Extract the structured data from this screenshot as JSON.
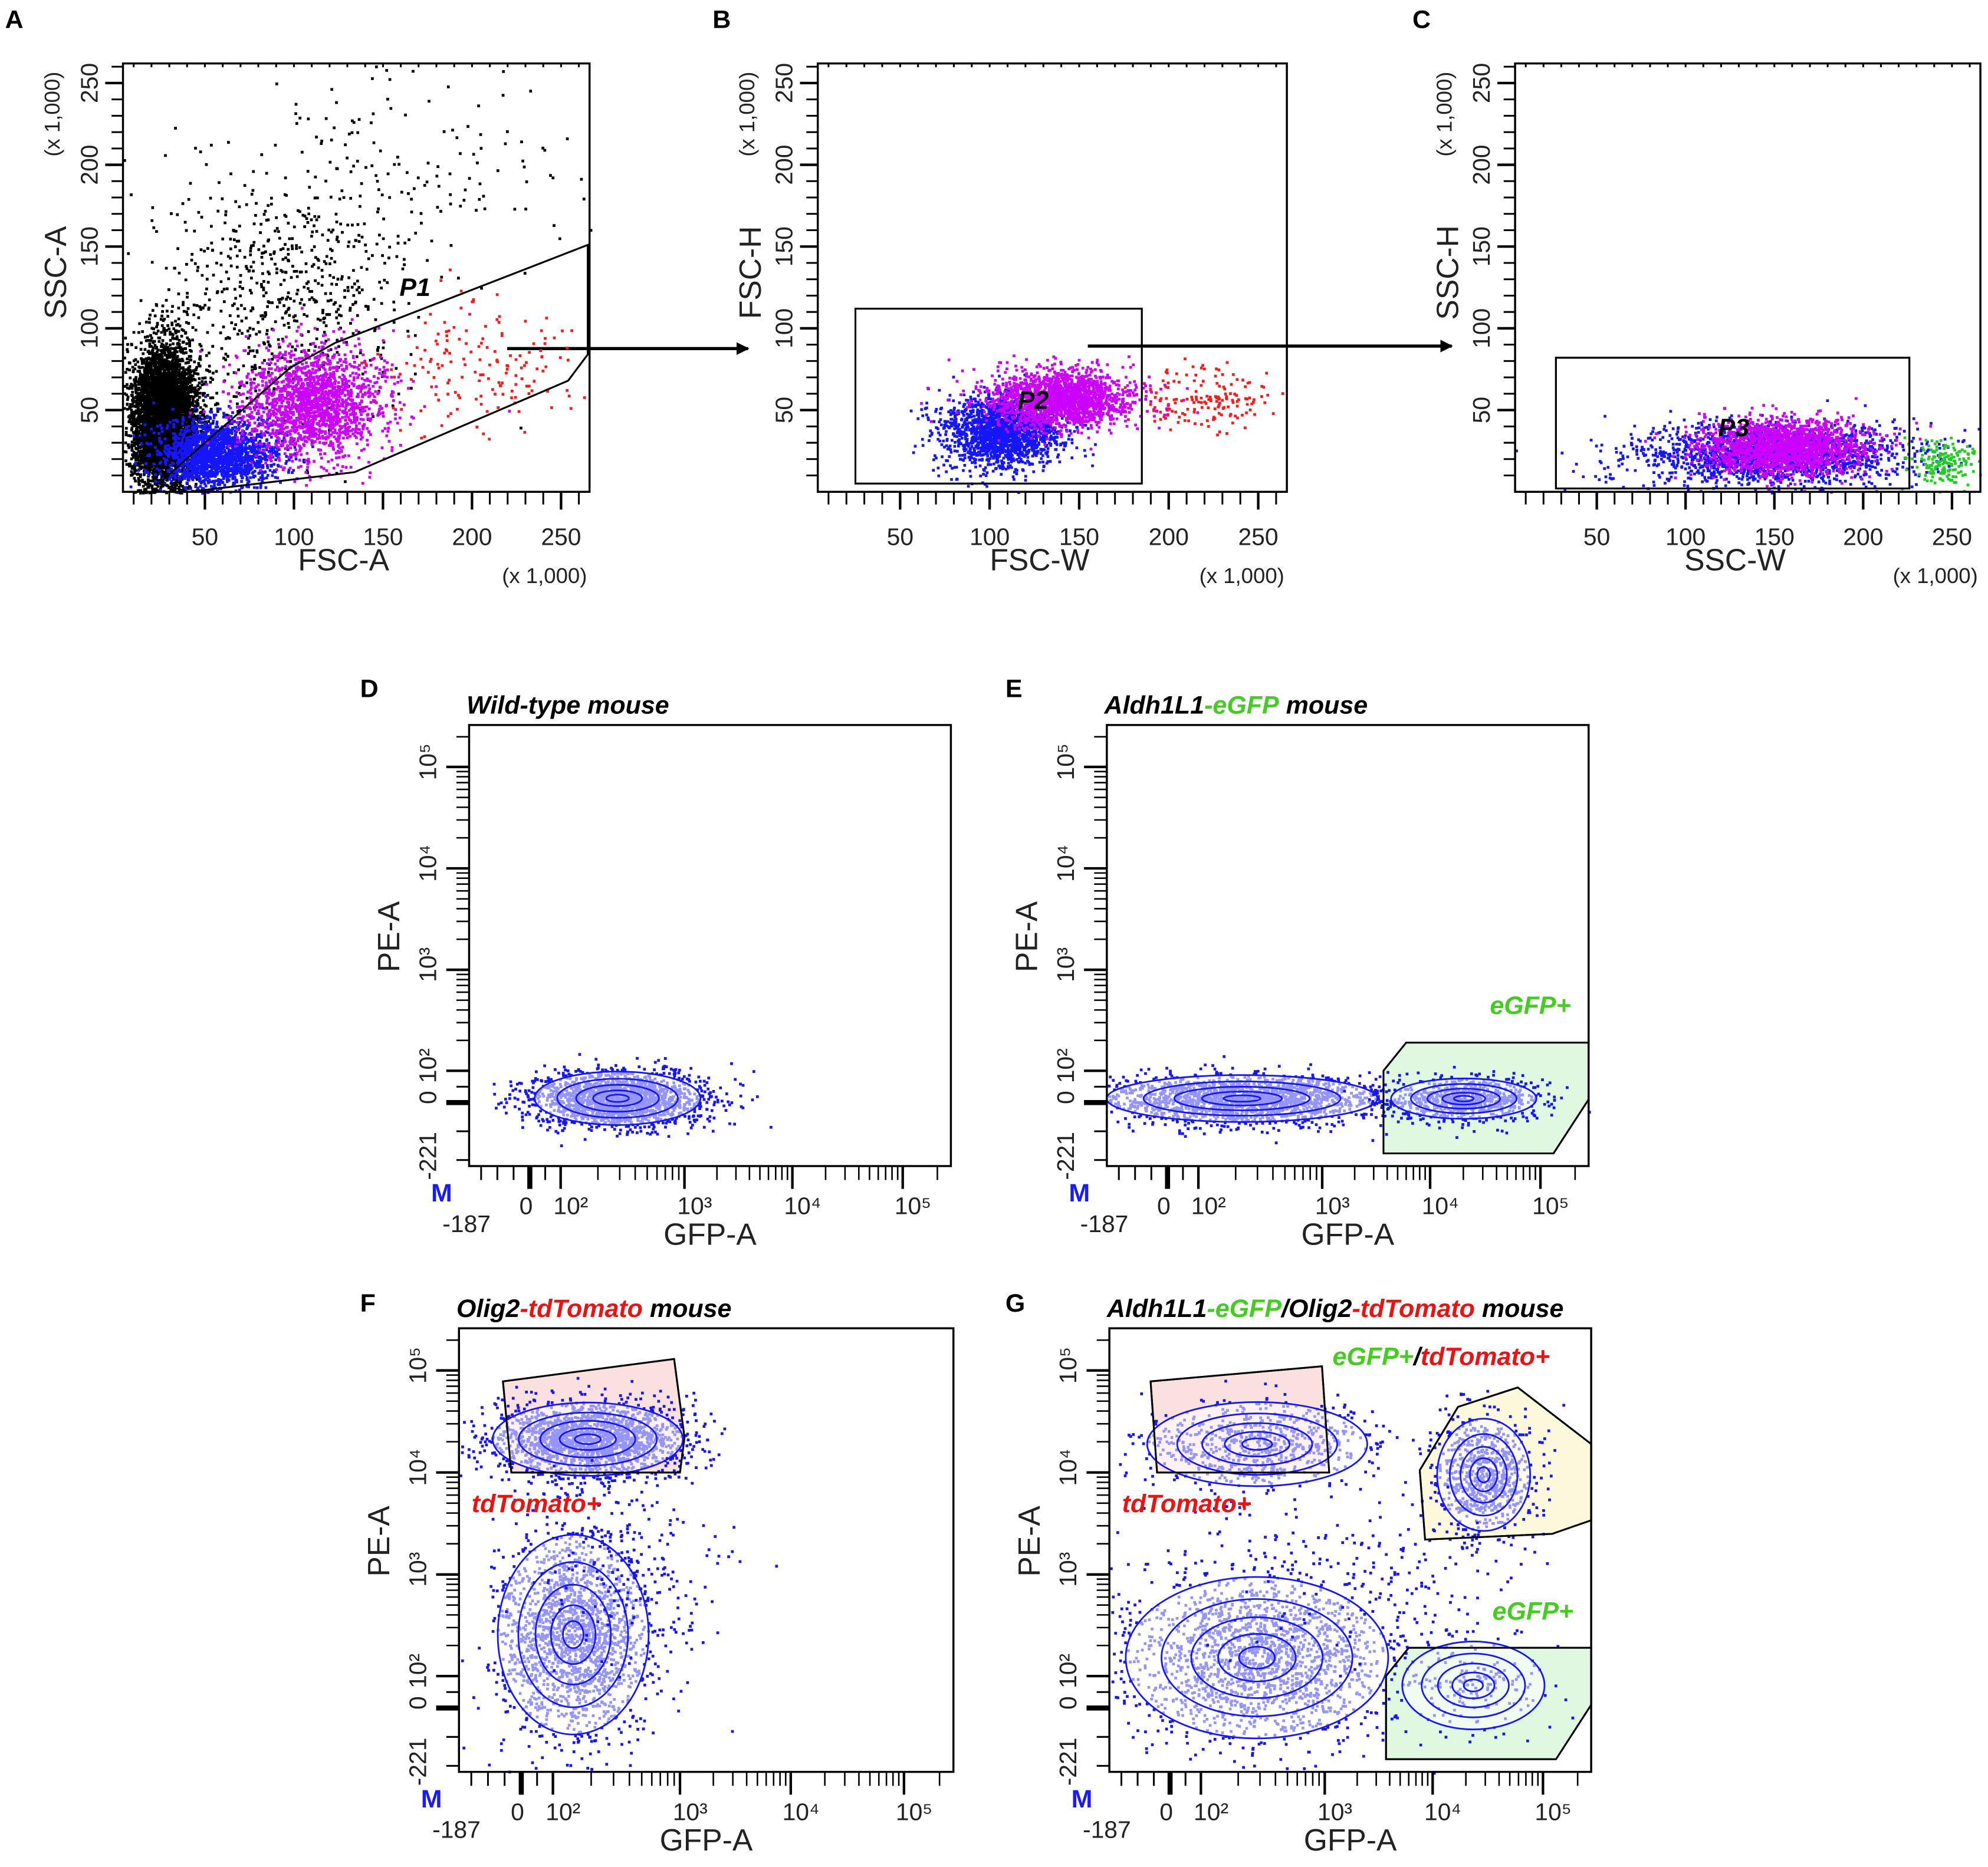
{
  "colors": {
    "black": "#000000",
    "blue": "#1515ff",
    "magenta": "#cc00ff",
    "red": "#ff1a1a",
    "green": "#22cc22",
    "text_green": "#44cc22",
    "text_red": "#ee1111",
    "gfp_gate_fill": "#e0f8e0",
    "tdtomato_gate_fill": "#fbe0e0",
    "double_gate_fill": "#fbf8dc",
    "m_marker": "#1a1aff"
  },
  "chart_data": [
    {
      "panel": "A",
      "type": "scatter",
      "xlabel": "FSC-A",
      "ylabel": "SSC-A",
      "x_multiplier": "(x 1,000)",
      "y_multiplier": "(x 1,000)",
      "xlim": [
        4,
        266
      ],
      "ylim": [
        0,
        262
      ],
      "xticks": [
        "50",
        "100",
        "150",
        "200",
        "250"
      ],
      "yticks": [
        "50",
        "100",
        "150",
        "200",
        "250"
      ],
      "gates": [
        {
          "name": "P1",
          "shape": "polygon",
          "vertices": [
            [
              24,
              5
            ],
            [
              98,
              76
            ],
            [
              123,
              91
            ],
            [
              265,
              151
            ],
            [
              265,
              84
            ],
            [
              254,
              68
            ],
            [
              134,
              12
            ],
            [
              41,
              0
            ]
          ]
        }
      ],
      "populations": [
        {
          "color": "black",
          "x_range": [
            8,
            45
          ],
          "y_range": [
            0,
            90
          ],
          "density": "very high"
        },
        {
          "color": "black",
          "x_range": [
            20,
            160
          ],
          "y_range": [
            30,
            200
          ],
          "density": "medium"
        },
        {
          "color": "black",
          "x_range": [
            60,
            262
          ],
          "y_range": [
            120,
            262
          ],
          "density": "low"
        },
        {
          "color": "blue",
          "x_range": [
            25,
            90
          ],
          "y_range": [
            3,
            45
          ],
          "density": "high"
        },
        {
          "color": "magenta",
          "x_range": [
            70,
            150
          ],
          "y_range": [
            20,
            90
          ],
          "density": "high"
        },
        {
          "color": "red",
          "x_range": [
            150,
            262
          ],
          "y_range": [
            40,
            120
          ],
          "density": "low"
        }
      ]
    },
    {
      "panel": "B",
      "type": "scatter",
      "xlabel": "FSC-W",
      "ylabel": "FSC-H",
      "x_multiplier": "(x 1,000)",
      "y_multiplier": "(x 1,000)",
      "xlim": [
        4,
        266
      ],
      "ylim": [
        0,
        262
      ],
      "xticks": [
        "50",
        "100",
        "150",
        "200",
        "250"
      ],
      "yticks": [
        "50",
        "100",
        "150",
        "200",
        "250"
      ],
      "gates": [
        {
          "name": "P2",
          "shape": "rectangle",
          "vertices": [
            [
              25,
              112
            ],
            [
              185,
              112
            ],
            [
              185,
              5
            ],
            [
              25,
              5
            ]
          ]
        }
      ],
      "populations": [
        {
          "color": "blue",
          "x_range": [
            72,
            140
          ],
          "y_range": [
            15,
            60
          ],
          "density": "high"
        },
        {
          "color": "magenta",
          "x_range": [
            100,
            180
          ],
          "y_range": [
            40,
            75
          ],
          "density": "high"
        },
        {
          "color": "red",
          "x_range": [
            185,
            262
          ],
          "y_range": [
            38,
            75
          ],
          "density": "low"
        }
      ]
    },
    {
      "panel": "C",
      "type": "scatter",
      "xlabel": "SSC-W",
      "ylabel": "SSC-H",
      "x_multiplier": "(x 1,000)",
      "y_multiplier": "(x 1,000)",
      "xlim": [
        4,
        266
      ],
      "ylim": [
        0,
        262
      ],
      "xticks": [
        "50",
        "100",
        "150",
        "200",
        "250"
      ],
      "yticks": [
        "50",
        "100",
        "150",
        "200",
        "250"
      ],
      "gates": [
        {
          "name": "P3",
          "shape": "rectangle",
          "vertices": [
            [
              27,
              82
            ],
            [
              226,
              82
            ],
            [
              226,
              2
            ],
            [
              27,
              2
            ]
          ]
        }
      ],
      "populations": [
        {
          "color": "blue",
          "x_range": [
            70,
            225
          ],
          "y_range": [
            5,
            42
          ],
          "density": "high"
        },
        {
          "color": "magenta",
          "x_range": [
            110,
            200
          ],
          "y_range": [
            12,
            45
          ],
          "density": "high"
        },
        {
          "color": "green",
          "x_range": [
            226,
            262
          ],
          "y_range": [
            5,
            35
          ],
          "density": "low"
        }
      ]
    },
    {
      "panel": "D",
      "type": "scatter",
      "title": [
        {
          "text": "Wild-type mouse",
          "color": "black"
        }
      ],
      "xlabel": "GFP-A",
      "ylabel": "PE-A",
      "xscale": "biexponential",
      "yscale": "biexponential",
      "x_marker": "M",
      "xticks": [
        "-187",
        "0",
        "10²",
        "10³",
        "10⁴",
        "10⁵"
      ],
      "yticks": [
        "-221",
        "0",
        "10²",
        "10³",
        "10⁴",
        "10⁵"
      ],
      "gates": [],
      "populations": [
        {
          "color": "blue",
          "x_range": [
            40,
            1200
          ],
          "y_range": [
            -70,
            90
          ],
          "density": "high",
          "contours": true
        }
      ]
    },
    {
      "panel": "E",
      "type": "scatter",
      "title": [
        {
          "text": "Aldh1L1",
          "color": "black"
        },
        {
          "text": "-eGFP",
          "color": "green"
        },
        {
          "text": " mouse",
          "color": "black"
        }
      ],
      "xlabel": "GFP-A",
      "ylabel": "PE-A",
      "xscale": "biexponential",
      "yscale": "biexponential",
      "x_marker": "M",
      "xticks": [
        "-187",
        "0",
        "10²",
        "10³",
        "10⁴",
        "10⁵"
      ],
      "yticks": [
        "-221",
        "0",
        "10²",
        "10³",
        "10⁴",
        "10⁵"
      ],
      "gates": [
        {
          "name": "eGFP+",
          "label_color": "green",
          "fill": "gfp",
          "vertices": [
            [
              3700,
              100
            ],
            [
              6000,
              190
            ],
            [
              262144,
              190
            ],
            [
              262144,
              10
            ],
            [
              130000,
              -177
            ],
            [
              3700,
              -177
            ]
          ],
          "label_at": [
            50000,
            700
          ]
        }
      ],
      "populations": [
        {
          "color": "blue",
          "x_range": [
            -150,
            2500
          ],
          "y_range": [
            -60,
            80
          ],
          "density": "high",
          "contours": true
        },
        {
          "color": "blue",
          "x_range": [
            5000,
            80000
          ],
          "y_range": [
            -50,
            70
          ],
          "density": "medium",
          "contours": true
        }
      ]
    },
    {
      "panel": "F",
      "type": "scatter",
      "title": [
        {
          "text": "Olig2",
          "color": "black"
        },
        {
          "text": "-tdTomato",
          "color": "red"
        },
        {
          "text": " mouse",
          "color": "black"
        }
      ],
      "xlabel": "GFP-A",
      "ylabel": "PE-A",
      "xscale": "biexponential",
      "yscale": "biexponential",
      "x_marker": "M",
      "xticks": [
        "-187",
        "0",
        "10²",
        "10³",
        "10⁴",
        "10⁵"
      ],
      "yticks": [
        "-221",
        "0",
        "10²",
        "10³",
        "10⁴",
        "10⁵"
      ],
      "gates": [
        {
          "name": "tdTomato+",
          "label_color": "red",
          "fill": "tdtomato",
          "vertices": [
            [
              -55,
              78000
            ],
            [
              900,
              130000
            ],
            [
              1100,
              22000
            ],
            [
              1000,
              10000
            ],
            [
              -30,
              10000
            ]
          ],
          "label_at": [
            -20,
            4000
          ]
        }
      ],
      "populations": [
        {
          "color": "blue",
          "x_range": [
            -60,
            900
          ],
          "y_range": [
            10000,
            45000
          ],
          "density": "high",
          "contours": true
        },
        {
          "color": "blue",
          "x_range": [
            -50,
            500
          ],
          "y_range": [
            -60,
            2000
          ],
          "density": "high",
          "contours": true
        },
        {
          "color": "blue",
          "x_range": [
            40,
            1500
          ],
          "y_range": [
            200,
            6000
          ],
          "density": "low"
        }
      ]
    },
    {
      "panel": "G",
      "type": "scatter",
      "title": [
        {
          "text": "Aldh1L1",
          "color": "black"
        },
        {
          "text": "-eGFP",
          "color": "green"
        },
        {
          "text": "/Olig2",
          "color": "black"
        },
        {
          "text": "-tdTomato",
          "color": "red"
        },
        {
          "text": " mouse",
          "color": "black"
        }
      ],
      "xlabel": "GFP-A",
      "ylabel": "PE-A",
      "xscale": "biexponential",
      "yscale": "biexponential",
      "x_marker": "M",
      "xticks": [
        "-187",
        "0",
        "10²",
        "10³",
        "10⁴",
        "10⁵"
      ],
      "yticks": [
        "-221",
        "0",
        "10²",
        "10³",
        "10⁴",
        "10⁵"
      ],
      "gates": [
        {
          "name": "tdTomato+",
          "label_color": "red",
          "fill": "tdtomato",
          "vertices": [
            [
              -60,
              78000
            ],
            [
              950,
              110000
            ],
            [
              1100,
              10000
            ],
            [
              -40,
              10000
            ]
          ],
          "label_at": [
            -20,
            4000
          ]
        },
        {
          "name_parts": [
            {
              "text": "eGFP+",
              "color": "green"
            },
            {
              "text": "/",
              "color": "black"
            },
            {
              "text": "tdTomato+",
              "color": "red"
            }
          ],
          "fill": "double",
          "vertices": [
            [
              7600,
              10500
            ],
            [
              17000,
              44000
            ],
            [
              59000,
              68000
            ],
            [
              262144,
              19000
            ],
            [
              262144,
              3400
            ],
            [
              120000,
              2500
            ],
            [
              8500,
              2200
            ]
          ],
          "label_at": [
            5000,
            200000
          ]
        },
        {
          "name": "eGFP+",
          "label_color": "green",
          "fill": "gfp",
          "vertices": [
            [
              3700,
              100
            ],
            [
              6000,
              190
            ],
            [
              262144,
              190
            ],
            [
              262144,
              10
            ],
            [
              130000,
              -177
            ],
            [
              3700,
              -177
            ]
          ],
          "label_at": [
            50000,
            700
          ]
        }
      ],
      "populations": [
        {
          "color": "blue",
          "x_range": [
            -40,
            2000
          ],
          "y_range": [
            8000,
            45000
          ],
          "density": "medium",
          "contours": true
        },
        {
          "color": "blue",
          "x_range": [
            -100,
            3000
          ],
          "y_range": [
            -80,
            800
          ],
          "density": "high",
          "contours": true
        },
        {
          "color": "blue",
          "x_range": [
            12000,
            70000
          ],
          "y_range": [
            3000,
            30000
          ],
          "density": "medium",
          "contours": true
        },
        {
          "color": "blue",
          "x_range": [
            6000,
            90000
          ],
          "y_range": [
            -60,
            200
          ],
          "density": "low",
          "contours": true
        },
        {
          "color": "blue",
          "x_range": [
            100,
            60000
          ],
          "y_range": [
            200,
            6000
          ],
          "density": "low"
        }
      ]
    }
  ]
}
